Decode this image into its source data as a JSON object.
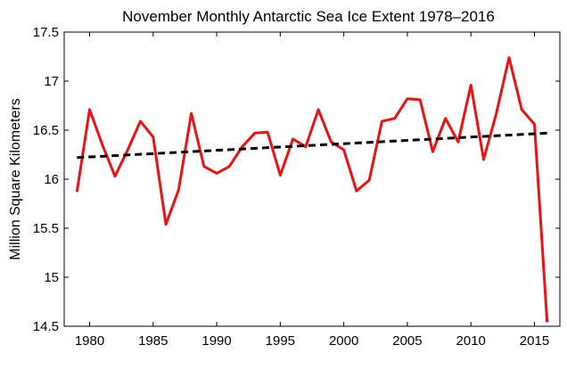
{
  "chart_data": {
    "type": "line",
    "title": "November Monthly Antarctic Sea Ice Extent 1978–2016",
    "xlabel": "",
    "ylabel": "Million Square Kilometers",
    "xlim": [
      1978,
      2017
    ],
    "ylim": [
      14.5,
      17.5
    ],
    "xticks": [
      1980,
      1985,
      1990,
      1995,
      2000,
      2005,
      2010,
      2015
    ],
    "yticks": [
      14.5,
      15,
      15.5,
      16,
      16.5,
      17,
      17.5
    ],
    "grid": false,
    "legend": "none",
    "series": [
      {
        "style": "solid",
        "color": "#ee1111",
        "x": [
          1979,
          1980,
          1981,
          1982,
          1983,
          1984,
          1985,
          1986,
          1987,
          1988,
          1989,
          1990,
          1991,
          1992,
          1993,
          1994,
          1995,
          1996,
          1997,
          1998,
          1999,
          2000,
          2001,
          2002,
          2003,
          2004,
          2005,
          2006,
          2007,
          2008,
          2009,
          2010,
          2011,
          2012,
          2013,
          2014,
          2015,
          2016
        ],
        "values": [
          15.87,
          16.71,
          16.35,
          16.03,
          16.3,
          16.59,
          16.43,
          15.54,
          15.89,
          16.67,
          16.13,
          16.06,
          16.13,
          16.33,
          16.47,
          16.48,
          16.04,
          16.41,
          16.33,
          16.71,
          16.38,
          16.3,
          15.88,
          15.99,
          16.59,
          16.62,
          16.82,
          16.81,
          16.28,
          16.62,
          16.38,
          16.96,
          16.2,
          16.67,
          17.24,
          16.71,
          16.56,
          14.54
        ]
      },
      {
        "style": "dashed",
        "color": "#000000",
        "x": [
          1979,
          2016
        ],
        "values": [
          16.22,
          16.47
        ]
      }
    ]
  }
}
